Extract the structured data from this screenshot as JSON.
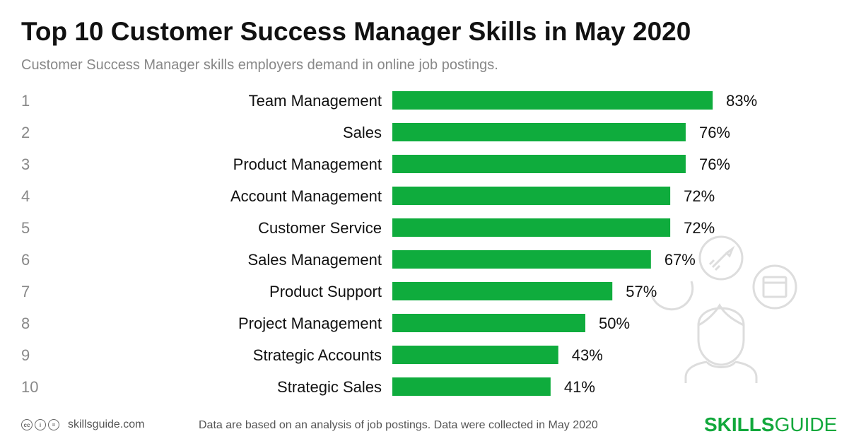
{
  "title": "Top 10 Customer Success Manager Skills in May 2020",
  "subtitle": "Customer Success Manager skills employers demand in online job postings.",
  "colors": {
    "bar": "#0fac3d",
    "rank": "#888888",
    "label": "#111111",
    "brand": "#12a83c"
  },
  "chart_data": {
    "type": "bar",
    "orientation": "horizontal",
    "ranks": [
      "1",
      "2",
      "3",
      "4",
      "5",
      "6",
      "7",
      "8",
      "9",
      "10"
    ],
    "categories": [
      "Team Management",
      "Sales",
      "Product Management",
      "Account Management",
      "Customer Service",
      "Sales Management",
      "Product Support",
      "Project Management",
      "Strategic Accounts",
      "Strategic Sales"
    ],
    "values": [
      83,
      76,
      76,
      72,
      72,
      67,
      57,
      50,
      43,
      41
    ],
    "value_labels": [
      "83%",
      "76%",
      "76%",
      "72%",
      "72%",
      "67%",
      "57%",
      "50%",
      "43%",
      "41%"
    ],
    "unit": "%",
    "xlim": [
      0,
      100
    ],
    "grid": false,
    "legend": "none"
  },
  "footer": {
    "license_icons": [
      "cc",
      "by",
      "eq"
    ],
    "site": "skillsguide.com",
    "note": "Data are based on an analysis of job postings. Data were collected in May 2020",
    "brand_bold": "SKILLS",
    "brand_light": "GUIDE"
  },
  "illustration_icons": [
    "person-icon",
    "rocket-icon",
    "browser-window-icon",
    "chart-circle-icon"
  ]
}
